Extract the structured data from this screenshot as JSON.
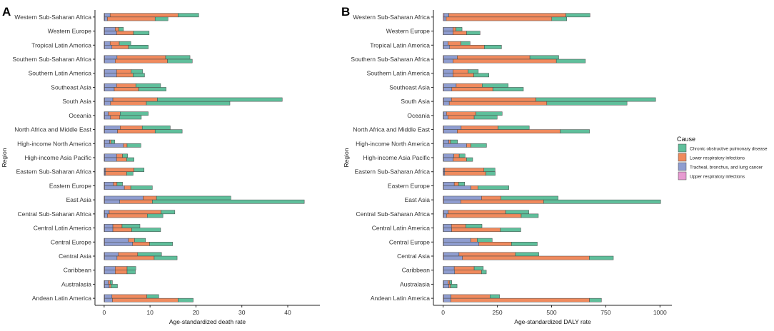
{
  "colors": {
    "copd": "#5fbf9b",
    "lri": "#f08a5d",
    "lung": "#8f9dd0",
    "uri": "#e79ad1",
    "stroke": "#444444",
    "axis": "#222222"
  },
  "legend": {
    "title": "Cause",
    "entries": [
      {
        "key": "copd",
        "label": "Chronic obstructive pulmonary disease"
      },
      {
        "key": "lri",
        "label": "Lower respiratory infections"
      },
      {
        "key": "lung",
        "label": "Tracheal, bronchus, and lung cancer"
      },
      {
        "key": "uri",
        "label": "Upper respiratory infections"
      }
    ]
  },
  "chart_data": [
    {
      "panel": "A",
      "type": "bar",
      "orientation": "horizontal",
      "stacked": true,
      "bars_per_category": 2,
      "xlabel": "Age-standardized death rate",
      "ylabel": "Region",
      "xlim": [
        -2,
        47
      ],
      "xticks": [
        0,
        10,
        20,
        30,
        40
      ],
      "categories": [
        "Western Sub-Saharan Africa",
        "Western Europe",
        "Tropical Latin America",
        "Southern Sub-Saharan Africa",
        "Southern Latin America",
        "Southeast Asia",
        "South Asia",
        "Oceania",
        "North Africa and Middle East",
        "High-income North America",
        "High-income Asia Pacific",
        "Eastern Sub-Saharan Africa",
        "Eastern Europe",
        "East Asia",
        "Central Sub-Saharan Africa",
        "Central Latin America",
        "Central Europe",
        "Central Asia",
        "Caribbean",
        "Australasia",
        "Andean Latin America"
      ],
      "series_order": [
        "uri",
        "lung",
        "lri",
        "copd"
      ],
      "bars": [
        [
          {
            "uri": 0.1,
            "lung": 1.2,
            "lri": 14.8,
            "copd": 4.5
          },
          {
            "uri": 0.1,
            "lung": 0.6,
            "lri": 10.4,
            "copd": 2.8
          }
        ],
        [
          {
            "uri": 0.1,
            "lung": 2.3,
            "lri": 0.8,
            "copd": 1.0
          },
          {
            "uri": 0.1,
            "lung": 2.6,
            "lri": 3.7,
            "copd": 3.4
          }
        ],
        [
          {
            "uri": 0.1,
            "lung": 1.2,
            "lri": 2.0,
            "copd": 2.5
          },
          {
            "uri": 0.1,
            "lung": 1.6,
            "lri": 3.6,
            "copd": 4.3
          }
        ],
        [
          {
            "uri": 0.1,
            "lung": 2.7,
            "lri": 10.6,
            "copd": 5.3
          },
          {
            "uri": 0.1,
            "lung": 2.3,
            "lri": 11.4,
            "copd": 5.4
          }
        ],
        [
          {
            "uri": 0.1,
            "lung": 2.6,
            "lri": 3.2,
            "copd": 2.5
          },
          {
            "uri": 0.1,
            "lung": 2.6,
            "lri": 3.6,
            "copd": 2.5
          }
        ],
        [
          {
            "uri": 0.1,
            "lung": 2.6,
            "lri": 4.2,
            "copd": 5.4
          },
          {
            "uri": 0.1,
            "lung": 2.1,
            "lri": 5.3,
            "copd": 6.0
          }
        ],
        [
          {
            "uri": 0.1,
            "lung": 1.8,
            "lri": 9.7,
            "copd": 27.2
          },
          {
            "uri": 0.1,
            "lung": 1.3,
            "lri": 7.8,
            "copd": 18.2
          }
        ],
        [
          {
            "uri": 0.1,
            "lung": 0.8,
            "lri": 2.6,
            "copd": 6.1
          },
          {
            "uri": 0.1,
            "lung": 1.3,
            "lri": 2.0,
            "copd": 4.7
          }
        ],
        [
          {
            "uri": 0.1,
            "lung": 3.4,
            "lri": 4.8,
            "copd": 6.1
          },
          {
            "uri": 0.1,
            "lung": 2.8,
            "lri": 8.2,
            "copd": 5.9
          }
        ],
        [
          {
            "uri": 0.1,
            "lung": 1.1,
            "lri": 0.3,
            "copd": 0.8
          },
          {
            "uri": 0.1,
            "lung": 4.1,
            "lri": 0.8,
            "copd": 3.0
          }
        ],
        [
          {
            "uri": 0.1,
            "lung": 2.6,
            "lri": 1.3,
            "copd": 1.1
          },
          {
            "uri": 0.1,
            "lung": 2.6,
            "lri": 2.2,
            "copd": 1.6
          }
        ],
        [
          {
            "uri": 0.1,
            "lung": 0.2,
            "lri": 6.2,
            "copd": 2.2
          },
          {
            "uri": 0.1,
            "lung": 0.2,
            "lri": 4.6,
            "copd": 1.4
          }
        ],
        [
          {
            "uri": 0.1,
            "lung": 1.9,
            "lri": 0.8,
            "copd": 1.2
          },
          {
            "uri": 0.1,
            "lung": 4.3,
            "lri": 1.4,
            "copd": 4.7
          }
        ],
        [
          {
            "uri": 0.1,
            "lung": 8.4,
            "lri": 2.9,
            "copd": 16.2
          },
          {
            "uri": 0.1,
            "lung": 3.3,
            "lri": 7.1,
            "copd": 33.1
          }
        ],
        [
          {
            "uri": 0.1,
            "lung": 1.0,
            "lri": 11.3,
            "copd": 3.0
          },
          {
            "uri": 0.1,
            "lung": 0.6,
            "lri": 8.7,
            "copd": 3.4
          }
        ],
        [
          {
            "uri": 0.1,
            "lung": 1.8,
            "lri": 2.0,
            "copd": 3.9
          },
          {
            "uri": 0.1,
            "lung": 1.8,
            "lri": 4.1,
            "copd": 6.3
          }
        ],
        [
          {
            "uri": 0.1,
            "lung": 5.2,
            "lri": 1.3,
            "copd": 2.4
          },
          {
            "uri": 0.1,
            "lung": 6.1,
            "lri": 3.7,
            "copd": 5.0
          }
        ],
        [
          {
            "uri": 0.1,
            "lung": 3.0,
            "lri": 4.2,
            "copd": 5.2
          },
          {
            "uri": 0.1,
            "lung": 2.7,
            "lri": 8.1,
            "copd": 5.0
          }
        ],
        [
          {
            "uri": 0.1,
            "lung": 2.3,
            "lri": 2.6,
            "copd": 1.9
          },
          {
            "uri": 0.1,
            "lung": 2.3,
            "lri": 2.6,
            "copd": 1.8
          }
        ],
        [
          {
            "uri": 0.1,
            "lung": 0.8,
            "lri": 0.4,
            "copd": 0.5
          },
          {
            "uri": 0.1,
            "lung": 1.0,
            "lri": 0.4,
            "copd": 1.4
          }
        ],
        [
          {
            "uri": 0.1,
            "lung": 1.6,
            "lri": 7.6,
            "copd": 2.6
          },
          {
            "uri": 0.1,
            "lung": 1.7,
            "lri": 14.3,
            "copd": 3.3
          }
        ]
      ]
    },
    {
      "panel": "B",
      "type": "bar",
      "orientation": "horizontal",
      "stacked": true,
      "bars_per_category": 2,
      "xlabel": "Age-standardized DALY rate",
      "ylabel": "Region",
      "xlim": [
        -45,
        1055
      ],
      "xticks": [
        0,
        250,
        500,
        750,
        1000
      ],
      "categories": [
        "Western Sub-Saharan Africa",
        "Western Europe",
        "Tropical Latin America",
        "Southern Sub-Saharan Africa",
        "Southern Latin America",
        "Southeast Asia",
        "South Asia",
        "Oceania",
        "North Africa and Middle East",
        "High-income North America",
        "High-income Asia Pacific",
        "Eastern Sub-Saharan Africa",
        "Eastern Europe",
        "East Asia",
        "Central Sub-Saharan Africa",
        "Central Latin America",
        "Central Europe",
        "Central Asia",
        "Caribbean",
        "Australasia",
        "Andean Latin America"
      ],
      "series_order": [
        "uri",
        "lung",
        "lri",
        "copd"
      ],
      "bars": [
        [
          {
            "uri": 4,
            "lung": 22,
            "lri": 540,
            "copd": 111
          },
          {
            "uri": 4,
            "lung": 10,
            "lri": 487,
            "copd": 69
          }
        ],
        [
          {
            "uri": 2,
            "lung": 43,
            "lri": 14,
            "copd": 28
          },
          {
            "uri": 2,
            "lung": 43,
            "lri": 63,
            "copd": 62
          }
        ],
        [
          {
            "uri": 2,
            "lung": 20,
            "lri": 60,
            "copd": 42
          },
          {
            "uri": 2,
            "lung": 28,
            "lri": 160,
            "copd": 79
          }
        ],
        [
          {
            "uri": 3,
            "lung": 62,
            "lri": 335,
            "copd": 133
          },
          {
            "uri": 3,
            "lung": 42,
            "lri": 477,
            "copd": 134
          }
        ],
        [
          {
            "uri": 2,
            "lung": 43,
            "lri": 70,
            "copd": 47
          },
          {
            "uri": 2,
            "lung": 43,
            "lri": 96,
            "copd": 70
          }
        ],
        [
          {
            "uri": 3,
            "lung": 57,
            "lri": 120,
            "copd": 120
          },
          {
            "uri": 3,
            "lung": 37,
            "lri": 189,
            "copd": 141
          }
        ],
        [
          {
            "uri": 3,
            "lung": 35,
            "lri": 390,
            "copd": 552
          },
          {
            "uri": 3,
            "lung": 25,
            "lri": 450,
            "copd": 370
          }
        ],
        [
          {
            "uri": 2,
            "lung": 13,
            "lri": 136,
            "copd": 121
          },
          {
            "uri": 2,
            "lung": 20,
            "lri": 121,
            "copd": 106
          }
        ],
        [
          {
            "uri": 3,
            "lung": 80,
            "lri": 170,
            "copd": 144
          },
          {
            "uri": 3,
            "lung": 62,
            "lri": 475,
            "copd": 135
          }
        ],
        [
          {
            "uri": 2,
            "lung": 24,
            "lri": 8,
            "copd": 32
          },
          {
            "uri": 2,
            "lung": 106,
            "lri": 20,
            "copd": 72
          }
        ],
        [
          {
            "uri": 2,
            "lung": 47,
            "lri": 25,
            "copd": 27
          },
          {
            "uri": 2,
            "lung": 44,
            "lri": 62,
            "copd": 28
          }
        ],
        [
          {
            "uri": 3,
            "lung": 4,
            "lri": 181,
            "copd": 51
          },
          {
            "uri": 3,
            "lung": 4,
            "lri": 190,
            "copd": 43
          }
        ],
        [
          {
            "uri": 2,
            "lung": 49,
            "lri": 20,
            "copd": 28
          },
          {
            "uri": 2,
            "lung": 126,
            "lri": 32,
            "copd": 143
          }
        ],
        [
          {
            "uri": 3,
            "lung": 174,
            "lri": 90,
            "copd": 263
          },
          {
            "uri": 3,
            "lung": 78,
            "lri": 382,
            "copd": 540
          }
        ],
        [
          {
            "uri": 3,
            "lung": 20,
            "lri": 265,
            "copd": 107
          },
          {
            "uri": 3,
            "lung": 12,
            "lri": 345,
            "copd": 79
          }
        ],
        [
          {
            "uri": 2,
            "lung": 36,
            "lri": 66,
            "copd": 75
          },
          {
            "uri": 2,
            "lung": 37,
            "lri": 225,
            "copd": 94
          }
        ],
        [
          {
            "uri": 2,
            "lung": 125,
            "lri": 30,
            "copd": 69
          },
          {
            "uri": 2,
            "lung": 163,
            "lri": 150,
            "copd": 119
          }
        ],
        [
          {
            "uri": 3,
            "lung": 70,
            "lri": 260,
            "copd": 108
          },
          {
            "uri": 3,
            "lung": 86,
            "lri": 585,
            "copd": 111
          }
        ],
        [
          {
            "uri": 2,
            "lung": 49,
            "lri": 92,
            "copd": 42
          },
          {
            "uri": 2,
            "lung": 51,
            "lri": 124,
            "copd": 22
          }
        ],
        [
          {
            "uri": 2,
            "lung": 20,
            "lri": 8,
            "copd": 10
          },
          {
            "uri": 2,
            "lung": 24,
            "lri": 8,
            "copd": 30
          }
        ],
        [
          {
            "uri": 3,
            "lung": 33,
            "lri": 180,
            "copd": 44
          },
          {
            "uri": 3,
            "lung": 32,
            "lri": 640,
            "copd": 55
          }
        ]
      ]
    }
  ]
}
